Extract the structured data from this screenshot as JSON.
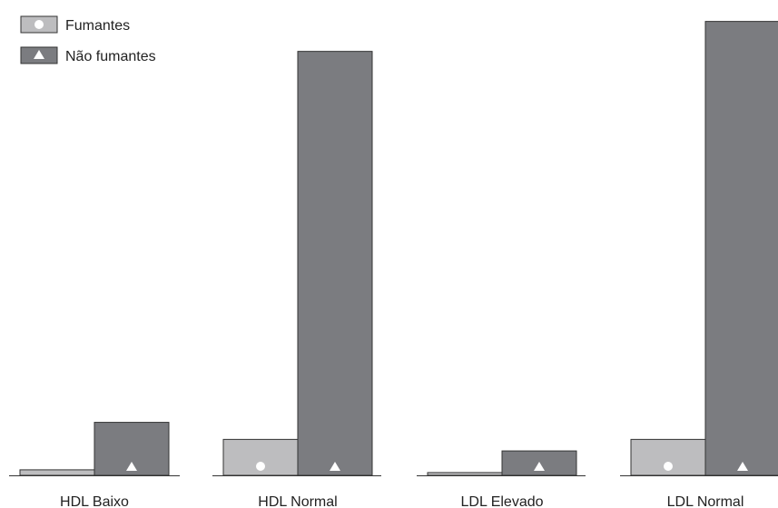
{
  "chart_data": {
    "type": "bar",
    "categories": [
      "HDL Baixo",
      "HDL Normal",
      "LDL Elevado",
      "LDL Normal"
    ],
    "series": [
      {
        "name": "Fumantes",
        "marker": "circle",
        "color": "#bdbdbf",
        "values": [
          1.2,
          7.8,
          0.6,
          7.8
        ]
      },
      {
        "name": "Não fumantes",
        "marker": "triangle",
        "color": "#7b7c80",
        "values": [
          11.5,
          92,
          5.3,
          98.5
        ]
      }
    ],
    "ylim": [
      0,
      100
    ],
    "legend_position": "top-left",
    "grid": false,
    "title": "",
    "xlabel": "",
    "ylabel": ""
  }
}
